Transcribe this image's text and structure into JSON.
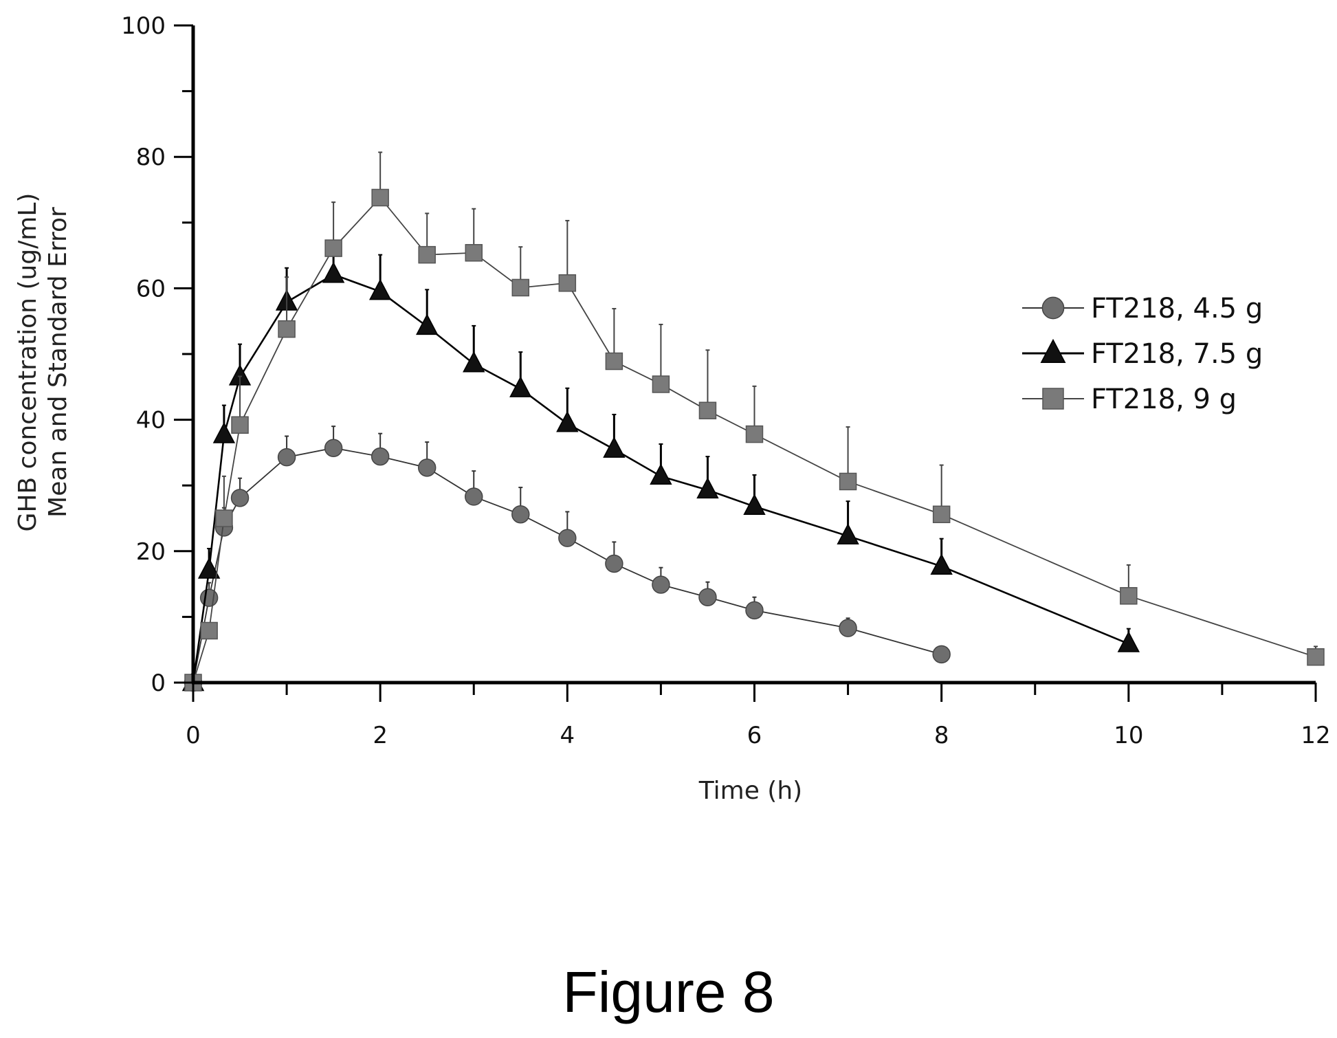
{
  "caption": "Figure 8",
  "chart_data": {
    "type": "line",
    "xlabel": "Time (h)",
    "ylabel_lines": [
      "GHB concentration (ug/mL)",
      "Mean and Standard Error"
    ],
    "xlim": [
      0,
      12
    ],
    "ylim": [
      0,
      100
    ],
    "xticks": [
      0,
      2,
      4,
      6,
      8,
      10,
      12
    ],
    "xtick_labels": [
      "0",
      "2",
      "4",
      "6",
      "8",
      "10",
      "12"
    ],
    "xminor_step": 1,
    "yticks": [
      0,
      20,
      40,
      60,
      80,
      100
    ],
    "ytick_labels": [
      "0",
      "20",
      "40",
      "60",
      "80",
      "100"
    ],
    "yminor_step": 10,
    "grid": false,
    "legend_position": "right",
    "series": [
      {
        "name": "FT218, 4.5 g",
        "marker": "circle",
        "color": "#6e6e6e",
        "line_color": "#333333",
        "x": [
          0,
          0.17,
          0.33,
          0.5,
          1,
          1.5,
          2,
          2.5,
          3,
          3.5,
          4,
          4.5,
          5,
          5.5,
          6,
          7,
          8
        ],
        "y": [
          0,
          12.9,
          23.6,
          28.1,
          34.3,
          35.7,
          34.4,
          32.7,
          28.3,
          25.6,
          22,
          18.1,
          14.9,
          13,
          11,
          8.3,
          4.3
        ],
        "err": [
          0,
          2.3,
          3,
          3,
          3.2,
          3.3,
          3.5,
          3.9,
          3.9,
          4.1,
          4,
          3.3,
          2.6,
          2.3,
          2,
          1.5,
          0
        ]
      },
      {
        "name": "FT218, 7.5 g",
        "marker": "triangle",
        "color": "#111111",
        "line_color": "#000000",
        "x": [
          0,
          0.17,
          0.33,
          0.5,
          1,
          1.5,
          2,
          2.5,
          3,
          3.5,
          4,
          4.5,
          5,
          5.5,
          6,
          7,
          8,
          10
        ],
        "y": [
          0,
          17.1,
          37.7,
          46.5,
          57.9,
          62.1,
          59.5,
          54.2,
          48.5,
          44.7,
          39.4,
          35.5,
          31.4,
          29.3,
          26.8,
          22.3,
          17.7,
          5.9
        ],
        "err": [
          0,
          3.3,
          4.5,
          5,
          5.2,
          3.2,
          5.6,
          5.6,
          5.8,
          5.6,
          5.4,
          5.3,
          4.9,
          5.1,
          4.8,
          5.3,
          4.2,
          2.3
        ]
      },
      {
        "name": "FT218, 9 g",
        "marker": "square",
        "color": "#7a7a7a",
        "line_color": "#444444",
        "x": [
          0,
          0.17,
          0.33,
          0.5,
          1,
          1.5,
          2,
          2.5,
          3,
          3.5,
          4,
          4.5,
          5,
          5.5,
          6,
          7,
          8,
          10,
          12
        ],
        "y": [
          0,
          7.9,
          25,
          39.2,
          53.8,
          66.1,
          73.8,
          65.1,
          65.4,
          60.1,
          60.8,
          48.9,
          45.4,
          41.4,
          37.8,
          30.6,
          25.6,
          13.2,
          3.9
        ],
        "err": [
          0,
          1.2,
          6.4,
          7.4,
          7.9,
          7,
          6.9,
          6.3,
          6.7,
          6.2,
          9.5,
          8,
          9.1,
          9.2,
          7.3,
          8.3,
          7.5,
          4.7,
          1.6
        ]
      }
    ]
  }
}
